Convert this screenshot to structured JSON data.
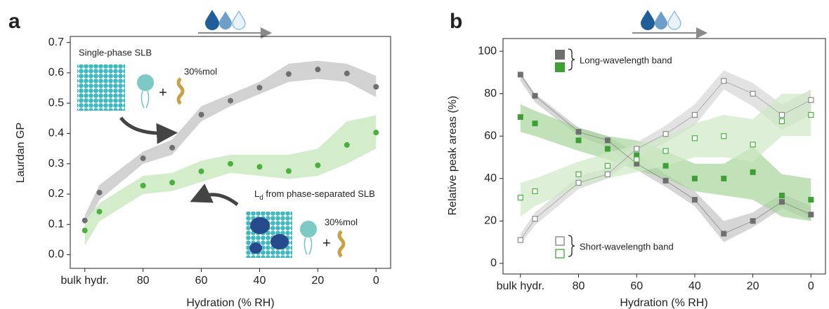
{
  "chart_data": [
    {
      "type": "scatter",
      "panel": "a",
      "x_label": "Hydration (% RH)",
      "y_label": "Laurdan GP",
      "xlim": [
        105,
        -5
      ],
      "ylim": [
        -0.045,
        0.72
      ],
      "xticks": [
        {
          "value": 100,
          "label": "bulk hydr."
        },
        80,
        60,
        40,
        20,
        0
      ],
      "yticks": [
        {
          "value": 0,
          "label": "0.0"
        },
        0.1,
        0.2,
        0.3,
        0.4,
        0.5,
        0.6,
        0.7
      ],
      "x": [
        100,
        95,
        80,
        70,
        60,
        50,
        40,
        30,
        20,
        10,
        0
      ],
      "series": [
        {
          "color": "#6f6f6f",
          "band_color": "#d2d2d2",
          "marker": "circle",
          "values": [
            0.113,
            0.205,
            0.318,
            0.353,
            0.462,
            0.508,
            0.551,
            0.596,
            0.611,
            0.598,
            0.554
          ],
          "band_lower": [
            0.09,
            0.18,
            0.3,
            0.33,
            0.44,
            0.49,
            0.53,
            0.57,
            0.58,
            0.57,
            0.52
          ],
          "band_upper": [
            0.13,
            0.23,
            0.34,
            0.38,
            0.49,
            0.53,
            0.57,
            0.63,
            0.64,
            0.63,
            0.59
          ]
        },
        {
          "color": "#4caf3f",
          "band_color": "#d3ecca",
          "marker": "circle",
          "values": [
            0.08,
            0.142,
            0.228,
            0.238,
            0.275,
            0.3,
            0.29,
            0.276,
            0.295,
            0.362,
            0.403
          ],
          "band_lower": [
            0.03,
            0.11,
            0.2,
            0.21,
            0.24,
            0.27,
            0.26,
            0.25,
            0.26,
            0.3,
            0.35
          ],
          "band_upper": [
            0.11,
            0.17,
            0.26,
            0.27,
            0.31,
            0.33,
            0.33,
            0.33,
            0.35,
            0.44,
            0.46
          ]
        }
      ],
      "annotations": {
        "single_phase": "Single-phase SLB",
        "mol_top": "30%mol",
        "plus_top": "+",
        "phase_separated": [
          "L",
          "d",
          " from phase-separated SLB"
        ],
        "mol_bottom": "30%mol",
        "plus_bottom": "+"
      }
    },
    {
      "type": "scatter",
      "panel": "b",
      "x_label": "Hydration (% RH)",
      "y_label": "Relative peak areas (%)",
      "xlim": [
        106,
        -5
      ],
      "ylim": [
        -5,
        106
      ],
      "xticks": [
        {
          "value": 100,
          "label": "bulk hydr."
        },
        80,
        60,
        40,
        20,
        0
      ],
      "yticks": [
        0,
        20,
        40,
        60,
        80,
        100
      ],
      "x": [
        100,
        95,
        80,
        70,
        60,
        50,
        40,
        30,
        20,
        10,
        0
      ],
      "series": [
        {
          "color": "#6f6f6f",
          "band_color": "#c4c4c4",
          "marker": "square",
          "line": true,
          "values": [
            89,
            79,
            62,
            58,
            47,
            39,
            30,
            14,
            20,
            29,
            23
          ],
          "band_lower": [
            86,
            76,
            60,
            55,
            44,
            36,
            27,
            10,
            17,
            26,
            20
          ],
          "band_upper": [
            90,
            80,
            64,
            60,
            52,
            42,
            34,
            20,
            24,
            33,
            27
          ]
        },
        {
          "color": "#3f9e35",
          "band_color": "#a6d69a",
          "marker": "square",
          "values": [
            69,
            66,
            58,
            54,
            51,
            46,
            40,
            40,
            43,
            32,
            30
          ],
          "band_lower": [
            62,
            60,
            53,
            49,
            44,
            40,
            34,
            32,
            30,
            22,
            20
          ],
          "band_upper": [
            75,
            72,
            64,
            60,
            58,
            53,
            47,
            47,
            55,
            42,
            40
          ]
        },
        {
          "color": "#8a8a8a",
          "band_color": "#d6d6d6",
          "marker": "square-open",
          "line": true,
          "values": [
            11,
            21,
            38,
            42,
            54,
            61,
            70,
            86,
            80,
            70,
            77
          ],
          "band_lower": [
            9,
            18,
            35,
            40,
            50,
            57,
            65,
            82,
            74,
            63,
            70
          ],
          "band_upper": [
            14,
            24,
            41,
            45,
            57,
            65,
            75,
            91,
            85,
            75,
            82
          ]
        },
        {
          "color": "#4caf3f",
          "band_color": "#cfeac6",
          "marker": "square-open",
          "values": [
            31,
            34,
            42,
            46,
            49,
            53,
            59,
            60,
            56,
            67,
            70
          ],
          "band_lower": [
            22,
            27,
            36,
            40,
            43,
            46,
            50,
            50,
            48,
            60,
            60
          ],
          "band_upper": [
            38,
            40,
            48,
            52,
            56,
            60,
            66,
            70,
            68,
            80,
            80
          ]
        }
      ],
      "legend": [
        {
          "label": "Long-wavelength band",
          "marker": "square",
          "colors": [
            "#6f6f6f",
            "#3f9e35"
          ]
        },
        {
          "label": "Short-wavelength band",
          "marker": "square-open",
          "colors": [
            "#8a8a8a",
            "#4caf3f"
          ]
        }
      ]
    }
  ]
}
